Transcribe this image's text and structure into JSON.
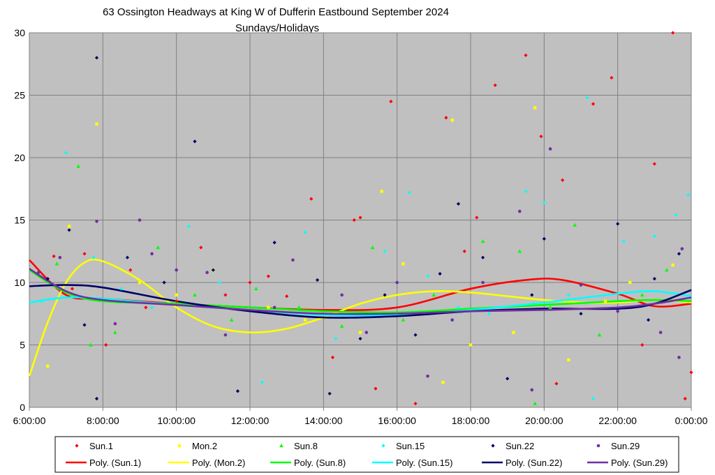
{
  "chart_data": {
    "type": "scatter",
    "title": "63 Ossington Headways at King W of Dufferin Eastbound September 2024",
    "subtitle": "Sundays/Holidays",
    "xlabel": "",
    "ylabel": "",
    "xlim": [
      "6:00:00",
      "0:00:00"
    ],
    "ylim": [
      0,
      30
    ],
    "x_ticks": [
      "6:00:00",
      "8:00:00",
      "10:00:00",
      "12:00:00",
      "14:00:00",
      "16:00:00",
      "18:00:00",
      "20:00:00",
      "22:00:00",
      "0:00:00"
    ],
    "y_ticks": [
      "0",
      "5",
      "10",
      "15",
      "20",
      "25",
      "30"
    ],
    "grid": true,
    "legend_position": "bottom",
    "plot_background": "#c0c0c0",
    "series": [
      {
        "name": "Sun.1",
        "marker": "diamond",
        "color": "#ff0000",
        "points": [
          [
            "6:40",
            12.1
          ],
          [
            "7:10",
            9.5
          ],
          [
            "7:30",
            12.3
          ],
          [
            "8:05",
            5.0
          ],
          [
            "8:45",
            11.0
          ],
          [
            "9:10",
            8.0
          ],
          [
            "10:00",
            8.5
          ],
          [
            "10:40",
            12.8
          ],
          [
            "11:20",
            9.0
          ],
          [
            "12:00",
            10.0
          ],
          [
            "12:30",
            10.5
          ],
          [
            "13:00",
            8.9
          ],
          [
            "13:40",
            16.7
          ],
          [
            "14:15",
            4.0
          ],
          [
            "14:50",
            15.0
          ],
          [
            "15:00",
            15.2
          ],
          [
            "15:25",
            1.5
          ],
          [
            "15:50",
            24.5
          ],
          [
            "16:30",
            0.3
          ],
          [
            "17:20",
            23.2
          ],
          [
            "17:50",
            12.5
          ],
          [
            "18:10",
            15.2
          ],
          [
            "18:40",
            25.8
          ],
          [
            "19:30",
            28.2
          ],
          [
            "19:55",
            21.7
          ],
          [
            "20:20",
            1.9
          ],
          [
            "20:30",
            18.2
          ],
          [
            "21:20",
            24.3
          ],
          [
            "21:50",
            26.4
          ],
          [
            "22:40",
            5.0
          ],
          [
            "23:00",
            19.5
          ],
          [
            "23:30",
            30.0
          ],
          [
            "23:50",
            0.7
          ],
          [
            "0:00",
            2.8
          ]
        ]
      },
      {
        "name": "Mon.2",
        "marker": "square",
        "color": "#ffff00",
        "points": [
          [
            "6:30",
            3.3
          ],
          [
            "7:05",
            14.5
          ],
          [
            "7:50",
            22.7
          ],
          [
            "9:00",
            10.0
          ],
          [
            "10:00",
            9.0
          ],
          [
            "11:00",
            11.0
          ],
          [
            "12:30",
            8.0
          ],
          [
            "13:30",
            7.0
          ],
          [
            "15:00",
            6.0
          ],
          [
            "15:35",
            17.3
          ],
          [
            "16:10",
            11.5
          ],
          [
            "17:15",
            2.0
          ],
          [
            "17:30",
            23.0
          ],
          [
            "18:00",
            5.0
          ],
          [
            "19:10",
            6.0
          ],
          [
            "19:45",
            24.0
          ],
          [
            "20:40",
            3.8
          ],
          [
            "21:40",
            8.5
          ],
          [
            "22:20",
            10.0
          ],
          [
            "23:30",
            11.4
          ]
        ]
      },
      {
        "name": "Sun.8",
        "marker": "triangle",
        "color": "#00ff00",
        "points": [
          [
            "6:45",
            11.5
          ],
          [
            "7:20",
            19.3
          ],
          [
            "7:40",
            5.0
          ],
          [
            "8:20",
            6.0
          ],
          [
            "9:30",
            12.8
          ],
          [
            "10:30",
            9.0
          ],
          [
            "11:30",
            7.0
          ],
          [
            "12:10",
            9.5
          ],
          [
            "13:20",
            8.0
          ],
          [
            "14:30",
            6.5
          ],
          [
            "15:20",
            12.8
          ],
          [
            "16:10",
            7.0
          ],
          [
            "17:00",
            9.0
          ],
          [
            "18:20",
            13.3
          ],
          [
            "19:20",
            12.5
          ],
          [
            "20:10",
            8.0
          ],
          [
            "20:50",
            14.6
          ],
          [
            "21:30",
            5.8
          ],
          [
            "22:40",
            9.0
          ],
          [
            "23:20",
            11.0
          ],
          [
            "19:45",
            0.3
          ]
        ]
      },
      {
        "name": "Sun.15",
        "marker": "diamond",
        "color": "#00ffff",
        "points": [
          [
            "6:20",
            8.5
          ],
          [
            "7:00",
            20.4
          ],
          [
            "7:45",
            12.0
          ],
          [
            "8:30",
            9.5
          ],
          [
            "9:20",
            8.0
          ],
          [
            "10:20",
            14.5
          ],
          [
            "11:10",
            10.0
          ],
          [
            "12:20",
            2.0
          ],
          [
            "13:30",
            14.0
          ],
          [
            "14:20",
            5.5
          ],
          [
            "15:40",
            12.5
          ],
          [
            "16:20",
            17.2
          ],
          [
            "16:50",
            10.5
          ],
          [
            "17:40",
            8.0
          ],
          [
            "18:30",
            7.5
          ],
          [
            "19:30",
            17.3
          ],
          [
            "20:00",
            16.4
          ],
          [
            "20:40",
            9.0
          ],
          [
            "21:10",
            24.8
          ],
          [
            "21:20",
            0.7
          ],
          [
            "22:10",
            13.3
          ],
          [
            "23:00",
            13.7
          ],
          [
            "23:55",
            17.0
          ],
          [
            "23:35",
            15.4
          ]
        ]
      },
      {
        "name": "Sun.22",
        "marker": "diamond",
        "color": "#000066",
        "points": [
          [
            "6:30",
            10.3
          ],
          [
            "7:05",
            14.2
          ],
          [
            "7:30",
            6.6
          ],
          [
            "7:50",
            28.0
          ],
          [
            "7:50",
            0.7
          ],
          [
            "8:40",
            12.0
          ],
          [
            "9:40",
            10.0
          ],
          [
            "10:30",
            21.3
          ],
          [
            "11:00",
            11.0
          ],
          [
            "11:40",
            1.3
          ],
          [
            "12:40",
            13.2
          ],
          [
            "13:50",
            10.2
          ],
          [
            "14:10",
            1.1
          ],
          [
            "15:00",
            5.5
          ],
          [
            "15:40",
            9.0
          ],
          [
            "16:30",
            5.8
          ],
          [
            "17:10",
            10.7
          ],
          [
            "17:40",
            16.3
          ],
          [
            "18:20",
            12.0
          ],
          [
            "19:00",
            2.3
          ],
          [
            "19:40",
            9.0
          ],
          [
            "20:00",
            13.5
          ],
          [
            "21:00",
            7.5
          ],
          [
            "22:00",
            14.7
          ],
          [
            "22:50",
            7.0
          ],
          [
            "23:40",
            12.3
          ],
          [
            "23:00",
            10.3
          ]
        ]
      },
      {
        "name": "Sun.29",
        "marker": "circle",
        "color": "#7030a0",
        "points": [
          [
            "6:15",
            10.8
          ],
          [
            "6:50",
            12.0
          ],
          [
            "7:50",
            14.9
          ],
          [
            "8:20",
            6.7
          ],
          [
            "9:00",
            15.0
          ],
          [
            "9:20",
            12.3
          ],
          [
            "10:00",
            11.0
          ],
          [
            "10:50",
            10.8
          ],
          [
            "11:20",
            5.8
          ],
          [
            "12:40",
            8.0
          ],
          [
            "13:10",
            11.8
          ],
          [
            "14:30",
            9.0
          ],
          [
            "15:10",
            6.0
          ],
          [
            "16:00",
            10.0
          ],
          [
            "16:50",
            2.5
          ],
          [
            "17:30",
            7.0
          ],
          [
            "18:20",
            10.0
          ],
          [
            "19:20",
            15.7
          ],
          [
            "19:40",
            1.4
          ],
          [
            "20:10",
            20.7
          ],
          [
            "21:00",
            9.8
          ],
          [
            "22:00",
            7.7
          ],
          [
            "23:10",
            6.0
          ],
          [
            "23:45",
            12.7
          ],
          [
            "23:40",
            4.0
          ]
        ]
      }
    ],
    "trendlines": [
      {
        "name": "Poly. (Sun.1)",
        "color": "#ff0000",
        "points": [
          [
            "6:00",
            11.8
          ],
          [
            "7:00",
            9.0
          ],
          [
            "8:00",
            8.7
          ],
          [
            "10:00",
            8.3
          ],
          [
            "12:00",
            8.0
          ],
          [
            "14:00",
            7.8
          ],
          [
            "16:00",
            8.0
          ],
          [
            "18:00",
            9.5
          ],
          [
            "19:30",
            10.2
          ],
          [
            "20:30",
            10.2
          ],
          [
            "22:00",
            9.1
          ],
          [
            "23:00",
            8.1
          ],
          [
            "0:00",
            8.3
          ]
        ]
      },
      {
        "name": "Poly. (Mon.2)",
        "color": "#ffff00",
        "points": [
          [
            "6:00",
            2.5
          ],
          [
            "6:30",
            6.8
          ],
          [
            "7:00",
            10.0
          ],
          [
            "7:30",
            11.6
          ],
          [
            "8:00",
            11.7
          ],
          [
            "9:00",
            10.2
          ],
          [
            "10:00",
            8.0
          ],
          [
            "11:00",
            6.5
          ],
          [
            "12:00",
            6.0
          ],
          [
            "13:00",
            6.3
          ],
          [
            "14:00",
            7.2
          ],
          [
            "15:00",
            8.3
          ],
          [
            "16:00",
            9.0
          ],
          [
            "17:00",
            9.3
          ],
          [
            "18:00",
            9.2
          ],
          [
            "19:00",
            8.9
          ],
          [
            "20:00",
            8.6
          ],
          [
            "21:00",
            8.4
          ],
          [
            "22:00",
            8.4
          ],
          [
            "23:00",
            8.6
          ],
          [
            "0:00",
            8.4
          ]
        ]
      },
      {
        "name": "Poly. (Sun.8)",
        "color": "#00ff00",
        "points": [
          [
            "6:00",
            11.0
          ],
          [
            "7:00",
            9.2
          ],
          [
            "8:00",
            8.5
          ],
          [
            "10:00",
            8.3
          ],
          [
            "12:00",
            8.0
          ],
          [
            "14:00",
            7.7
          ],
          [
            "16:00",
            7.6
          ],
          [
            "18:00",
            7.9
          ],
          [
            "20:00",
            8.2
          ],
          [
            "22:00",
            8.5
          ],
          [
            "23:00",
            8.6
          ],
          [
            "0:00",
            8.5
          ]
        ]
      },
      {
        "name": "Poly. (Sun.15)",
        "color": "#00ffff",
        "points": [
          [
            "6:00",
            8.4
          ],
          [
            "7:00",
            8.8
          ],
          [
            "8:00",
            8.7
          ],
          [
            "10:00",
            8.2
          ],
          [
            "12:00",
            7.8
          ],
          [
            "14:00",
            7.4
          ],
          [
            "16:00",
            7.4
          ],
          [
            "18:00",
            7.8
          ],
          [
            "20:00",
            8.4
          ],
          [
            "22:00",
            9.1
          ],
          [
            "23:00",
            9.3
          ],
          [
            "0:00",
            8.9
          ]
        ]
      },
      {
        "name": "Poly. (Sun.22)",
        "color": "#000066",
        "points": [
          [
            "6:00",
            9.7
          ],
          [
            "7:00",
            9.8
          ],
          [
            "8:00",
            9.6
          ],
          [
            "10:00",
            8.5
          ],
          [
            "12:00",
            7.7
          ],
          [
            "14:00",
            7.2
          ],
          [
            "16:00",
            7.3
          ],
          [
            "18:00",
            7.7
          ],
          [
            "20:00",
            7.9
          ],
          [
            "22:00",
            7.9
          ],
          [
            "23:00",
            8.3
          ],
          [
            "0:00",
            9.4
          ]
        ]
      },
      {
        "name": "Poly. (Sun.29)",
        "color": "#7030a0",
        "points": [
          [
            "6:00",
            11.1
          ],
          [
            "7:00",
            9.3
          ],
          [
            "8:00",
            8.6
          ],
          [
            "10:00",
            8.2
          ],
          [
            "12:00",
            7.8
          ],
          [
            "14:00",
            7.5
          ],
          [
            "16:00",
            7.5
          ],
          [
            "18:00",
            7.7
          ],
          [
            "20:00",
            7.8
          ],
          [
            "22:00",
            8.0
          ],
          [
            "23:00",
            8.3
          ],
          [
            "0:00",
            8.8
          ]
        ]
      }
    ]
  }
}
